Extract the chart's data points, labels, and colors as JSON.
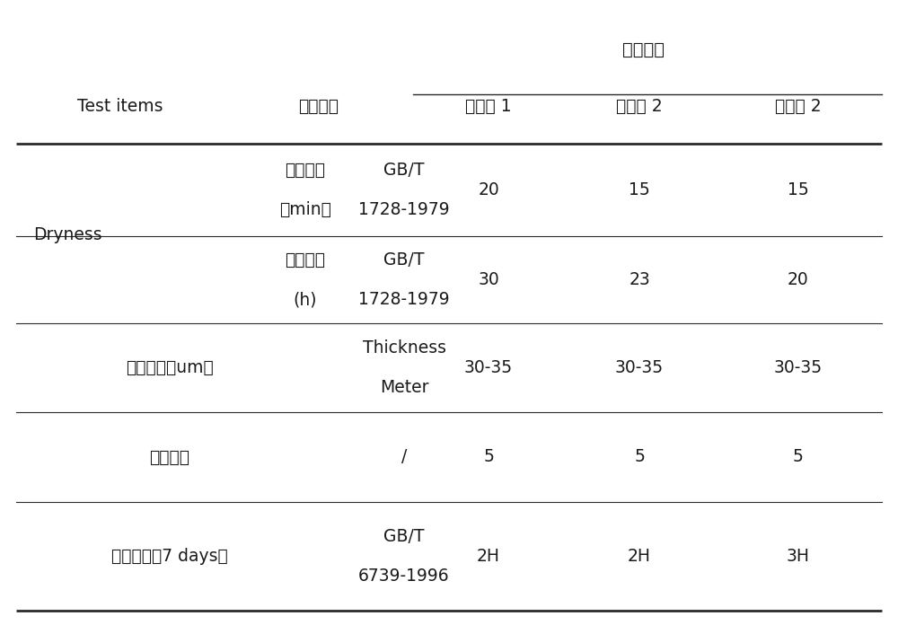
{
  "title_header": "测试结果",
  "col_headers_0": "Test items",
  "col_headers_1": "测试方法",
  "col_headers_2": "实施例 1",
  "col_headers_3": "实施例 2",
  "col_headers_4": "实施例 2",
  "row0_c0a": "表干时间",
  "row0_c0b": "（min）",
  "row0_c1a": "GB/T",
  "row0_c1b": "1728-1979",
  "row0_c2": "20",
  "row0_c3": "15",
  "row0_c4": "15",
  "row1_c0a": "实干时间",
  "row1_c0b": "(h)",
  "row1_c1a": "GB/T",
  "row1_c1b": "1728-1979",
  "row1_c2": "30",
  "row1_c3": "23",
  "row1_c4": "20",
  "row2_c0": "漆膜厚度（um）",
  "row2_c1a": "Thickness",
  "row2_c1b": "Meter",
  "row2_c2": "30-35",
  "row2_c3": "30-35",
  "row2_c4": "30-35",
  "row3_c0": "耐化性能",
  "row3_c1": "/",
  "row3_c2": "5",
  "row3_c3": "5",
  "row3_c4": "5",
  "row4_c0": "铅笔硬度（7 days）",
  "row4_c1a": "GB/T",
  "row4_c1b": "6739-1996",
  "row4_c2": "2H",
  "row4_c3": "2H",
  "row4_c4": "3H",
  "dryness_label": "Dryness",
  "bg_color": "#ffffff",
  "text_color": "#1a1a1a",
  "line_color": "#2a2a2a",
  "font_size": 13.5
}
